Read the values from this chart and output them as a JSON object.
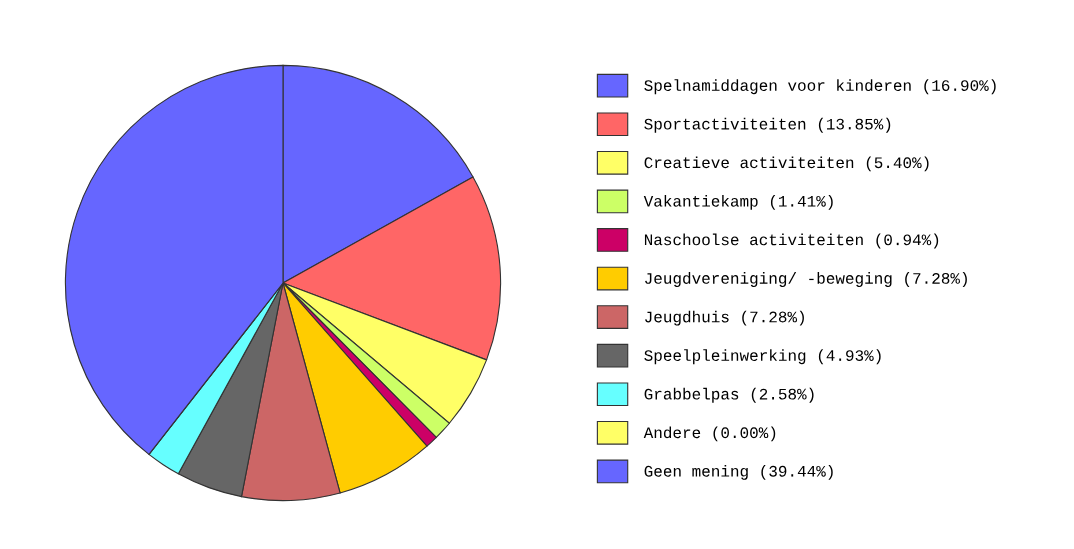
{
  "chart_data": {
    "type": "pie",
    "categories": [
      "Spelnamiddagen voor kinderen (16.90%)",
      "Sportactiviteiten (13.85%)",
      "Creatieve activiteiten (5.40%)",
      "Vakantiekamp (1.41%)",
      "Naschoolse activiteiten (0.94%)",
      "Jeugdvereniging/ -beweging (7.28%)",
      "Jeugdhuis (7.28%)",
      "Speelpleinwerking (4.93%)",
      "Grabbelpas (2.58%)",
      "Andere (0.00%)",
      "Geen mening (39.44%)"
    ],
    "values": [
      16.9,
      13.85,
      5.4,
      1.41,
      0.94,
      7.28,
      7.28,
      4.93,
      2.58,
      0.0,
      39.44
    ],
    "colors": [
      "#6666ff",
      "#ff6666",
      "#ffff66",
      "#ccff66",
      "#cc0066",
      "#ffcc00",
      "#cc6666",
      "#666666",
      "#66ffff",
      "#ffff66",
      "#6666ff"
    ],
    "legend": "right"
  }
}
